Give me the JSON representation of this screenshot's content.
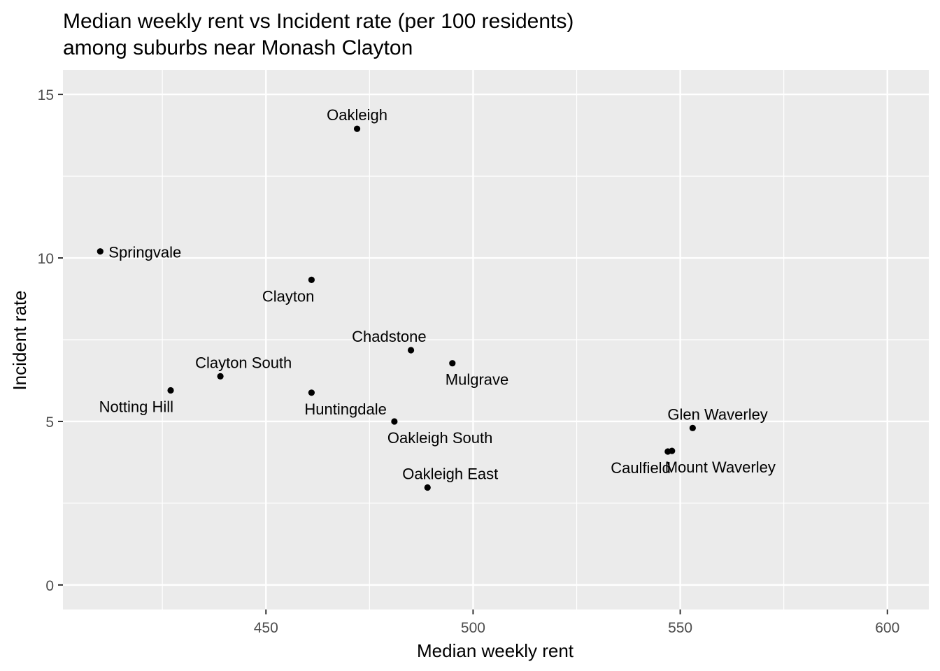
{
  "chart_data": {
    "type": "scatter",
    "title": "Median weekly rent vs Incident rate (per 100 residents)",
    "subtitle": "among suburbs near Monash Clayton",
    "xlabel": "Median weekly rent",
    "ylabel": "Incident rate",
    "xlim": [
      401,
      610
    ],
    "ylim": [
      -0.75,
      15.75
    ],
    "x_ticks": [
      450,
      500,
      550,
      600
    ],
    "y_ticks": [
      0,
      5,
      10,
      15
    ],
    "grid": true,
    "legend": "none",
    "colors": {
      "panel": "#ebebeb",
      "grid": "#ffffff",
      "point": "#000000",
      "text": "#000000",
      "tick_text": "#4d4d4d",
      "tick_mark": "#333333"
    },
    "points": [
      {
        "label": "Oakleigh",
        "x": 472,
        "y": 13.95,
        "label_pos": "above"
      },
      {
        "label": "Springvale",
        "x": 410,
        "y": 10.2,
        "label_pos": "right"
      },
      {
        "label": "Clayton",
        "x": 461,
        "y": 9.33,
        "label_pos": "below-left"
      },
      {
        "label": "Chadstone",
        "x": 485,
        "y": 7.18,
        "label_pos": "above-left"
      },
      {
        "label": "Mulgrave",
        "x": 495,
        "y": 6.78,
        "label_pos": "below-right"
      },
      {
        "label": "Clayton South",
        "x": 439,
        "y": 6.38,
        "label_pos": "above-right"
      },
      {
        "label": "Notting Hill",
        "x": 427,
        "y": 5.95,
        "label_pos": "below-left"
      },
      {
        "label": "Huntingdale",
        "x": 461,
        "y": 5.88,
        "label_pos": "below-right"
      },
      {
        "label": "Oakleigh South",
        "x": 481,
        "y": 5.0,
        "label_pos": "below-right"
      },
      {
        "label": "Oakleigh East",
        "x": 489,
        "y": 2.98,
        "label_pos": "above-right"
      },
      {
        "label": "Glen Waverley",
        "x": 553,
        "y": 4.8,
        "label_pos": "above-right"
      },
      {
        "label": "Mount Waverley",
        "x": 548,
        "y": 4.1,
        "label_pos": "below-right"
      },
      {
        "label": "Caulfield",
        "x": 547,
        "y": 4.08,
        "label_pos": "below-left"
      }
    ]
  }
}
